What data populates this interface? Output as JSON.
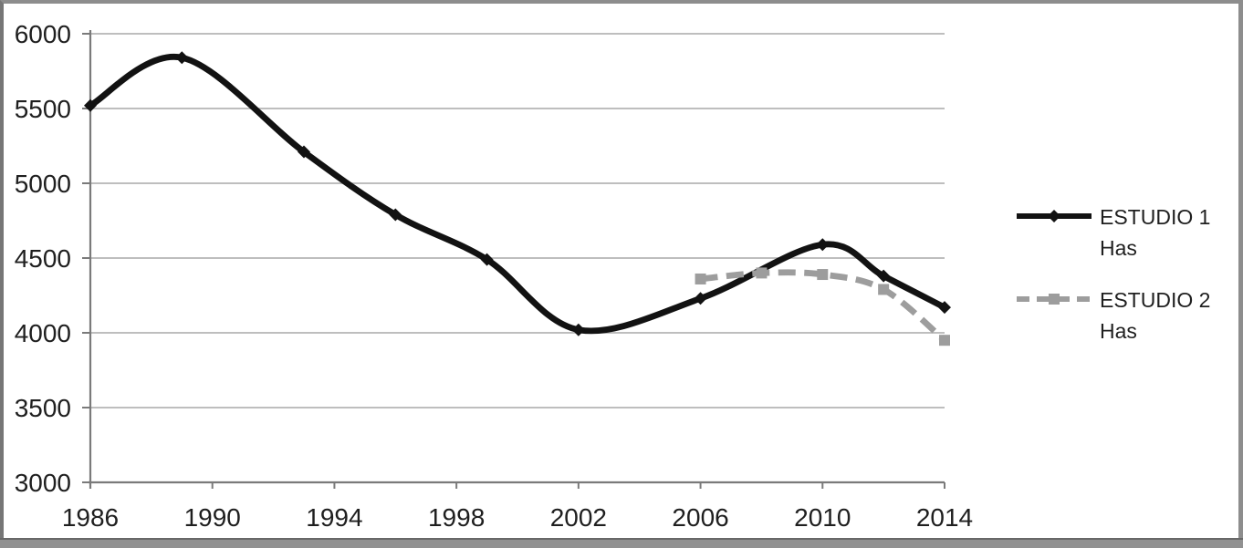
{
  "chart_data": {
    "type": "line",
    "title": "",
    "xlabel": "",
    "ylabel": "",
    "xlim": [
      1986,
      2014
    ],
    "ylim": [
      3000,
      6000
    ],
    "x_ticks": [
      1986,
      1990,
      1994,
      1998,
      2002,
      2006,
      2010,
      2014
    ],
    "y_ticks": [
      3000,
      3500,
      4000,
      4500,
      5000,
      5500,
      6000
    ],
    "grid": "horizontal",
    "legend_position": "right",
    "series": [
      {
        "name": "ESTUDIO 1 Has",
        "color": "#121212",
        "line_style": "solid",
        "marker": "diamond",
        "smooth": true,
        "points": [
          [
            1986,
            5520
          ],
          [
            1989,
            5840
          ],
          [
            1993,
            5210
          ],
          [
            1996,
            4790
          ],
          [
            1999,
            4490
          ],
          [
            2002,
            4020
          ],
          [
            2006,
            4230
          ],
          [
            2010,
            4590
          ],
          [
            2012,
            4380
          ],
          [
            2014,
            4170
          ]
        ]
      },
      {
        "name": "ESTUDIO 2 Has",
        "color": "#9d9d9d",
        "line_style": "dashed",
        "marker": "square",
        "smooth": true,
        "points": [
          [
            2006,
            4360
          ],
          [
            2008,
            4400
          ],
          [
            2010,
            4390
          ],
          [
            2012,
            4290
          ],
          [
            2014,
            3950
          ]
        ]
      }
    ]
  },
  "legend": {
    "entries": [
      {
        "line1": "ESTUDIO 1",
        "line2": "Has"
      },
      {
        "line1": "ESTUDIO 2",
        "line2": "Has"
      }
    ]
  },
  "colors": {
    "background": "#ffffff",
    "grid": "#b4b4b4",
    "axis": "#7a7a7a",
    "tick_text": "#1f1f1f",
    "frame_border": "#8d8d8d"
  }
}
